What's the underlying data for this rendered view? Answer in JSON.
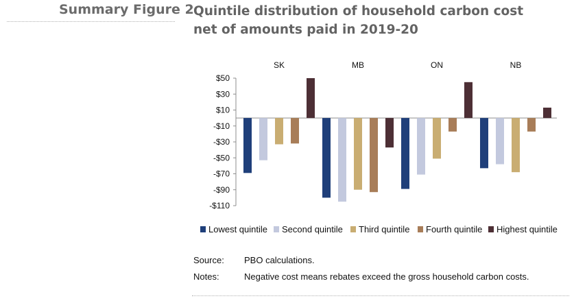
{
  "figure_label": "Summary Figure 2",
  "figure_title": "Quintile distribution of household carbon cost net of amounts paid in 2019-20",
  "source_label": "Source:",
  "source_text": "PBO calculations.",
  "notes_label": "Notes:",
  "notes_text": "Negative cost means rebates exceed the gross household carbon costs.",
  "chart_data": {
    "type": "bar",
    "categories": [
      "SK",
      "MB",
      "ON",
      "NB"
    ],
    "series": [
      {
        "name": "Lowest quintile",
        "color": "#1f3f7a",
        "values": [
          -69,
          -100,
          -89,
          -63
        ]
      },
      {
        "name": "Second quintile",
        "color": "#c3c9de",
        "values": [
          -53,
          -105,
          -71,
          -58
        ]
      },
      {
        "name": "Third quintile",
        "color": "#c9ad72",
        "values": [
          -33,
          -90,
          -51,
          -68
        ]
      },
      {
        "name": "Fourth quintile",
        "color": "#a87d58",
        "values": [
          -32,
          -93,
          -17,
          -17
        ]
      },
      {
        "name": "Highest quintile",
        "color": "#4d2f35",
        "values": [
          50,
          -37,
          45,
          13
        ]
      }
    ],
    "ylim": [
      -110,
      50
    ],
    "yticks": [
      50,
      30,
      10,
      -10,
      -30,
      -50,
      -70,
      -90,
      -110
    ],
    "ytick_labels": [
      "$50",
      "$30",
      "$10",
      "-$10",
      "-$30",
      "-$50",
      "-$70",
      "-$90",
      "-$110"
    ],
    "grid": false,
    "legend": "bottom"
  }
}
